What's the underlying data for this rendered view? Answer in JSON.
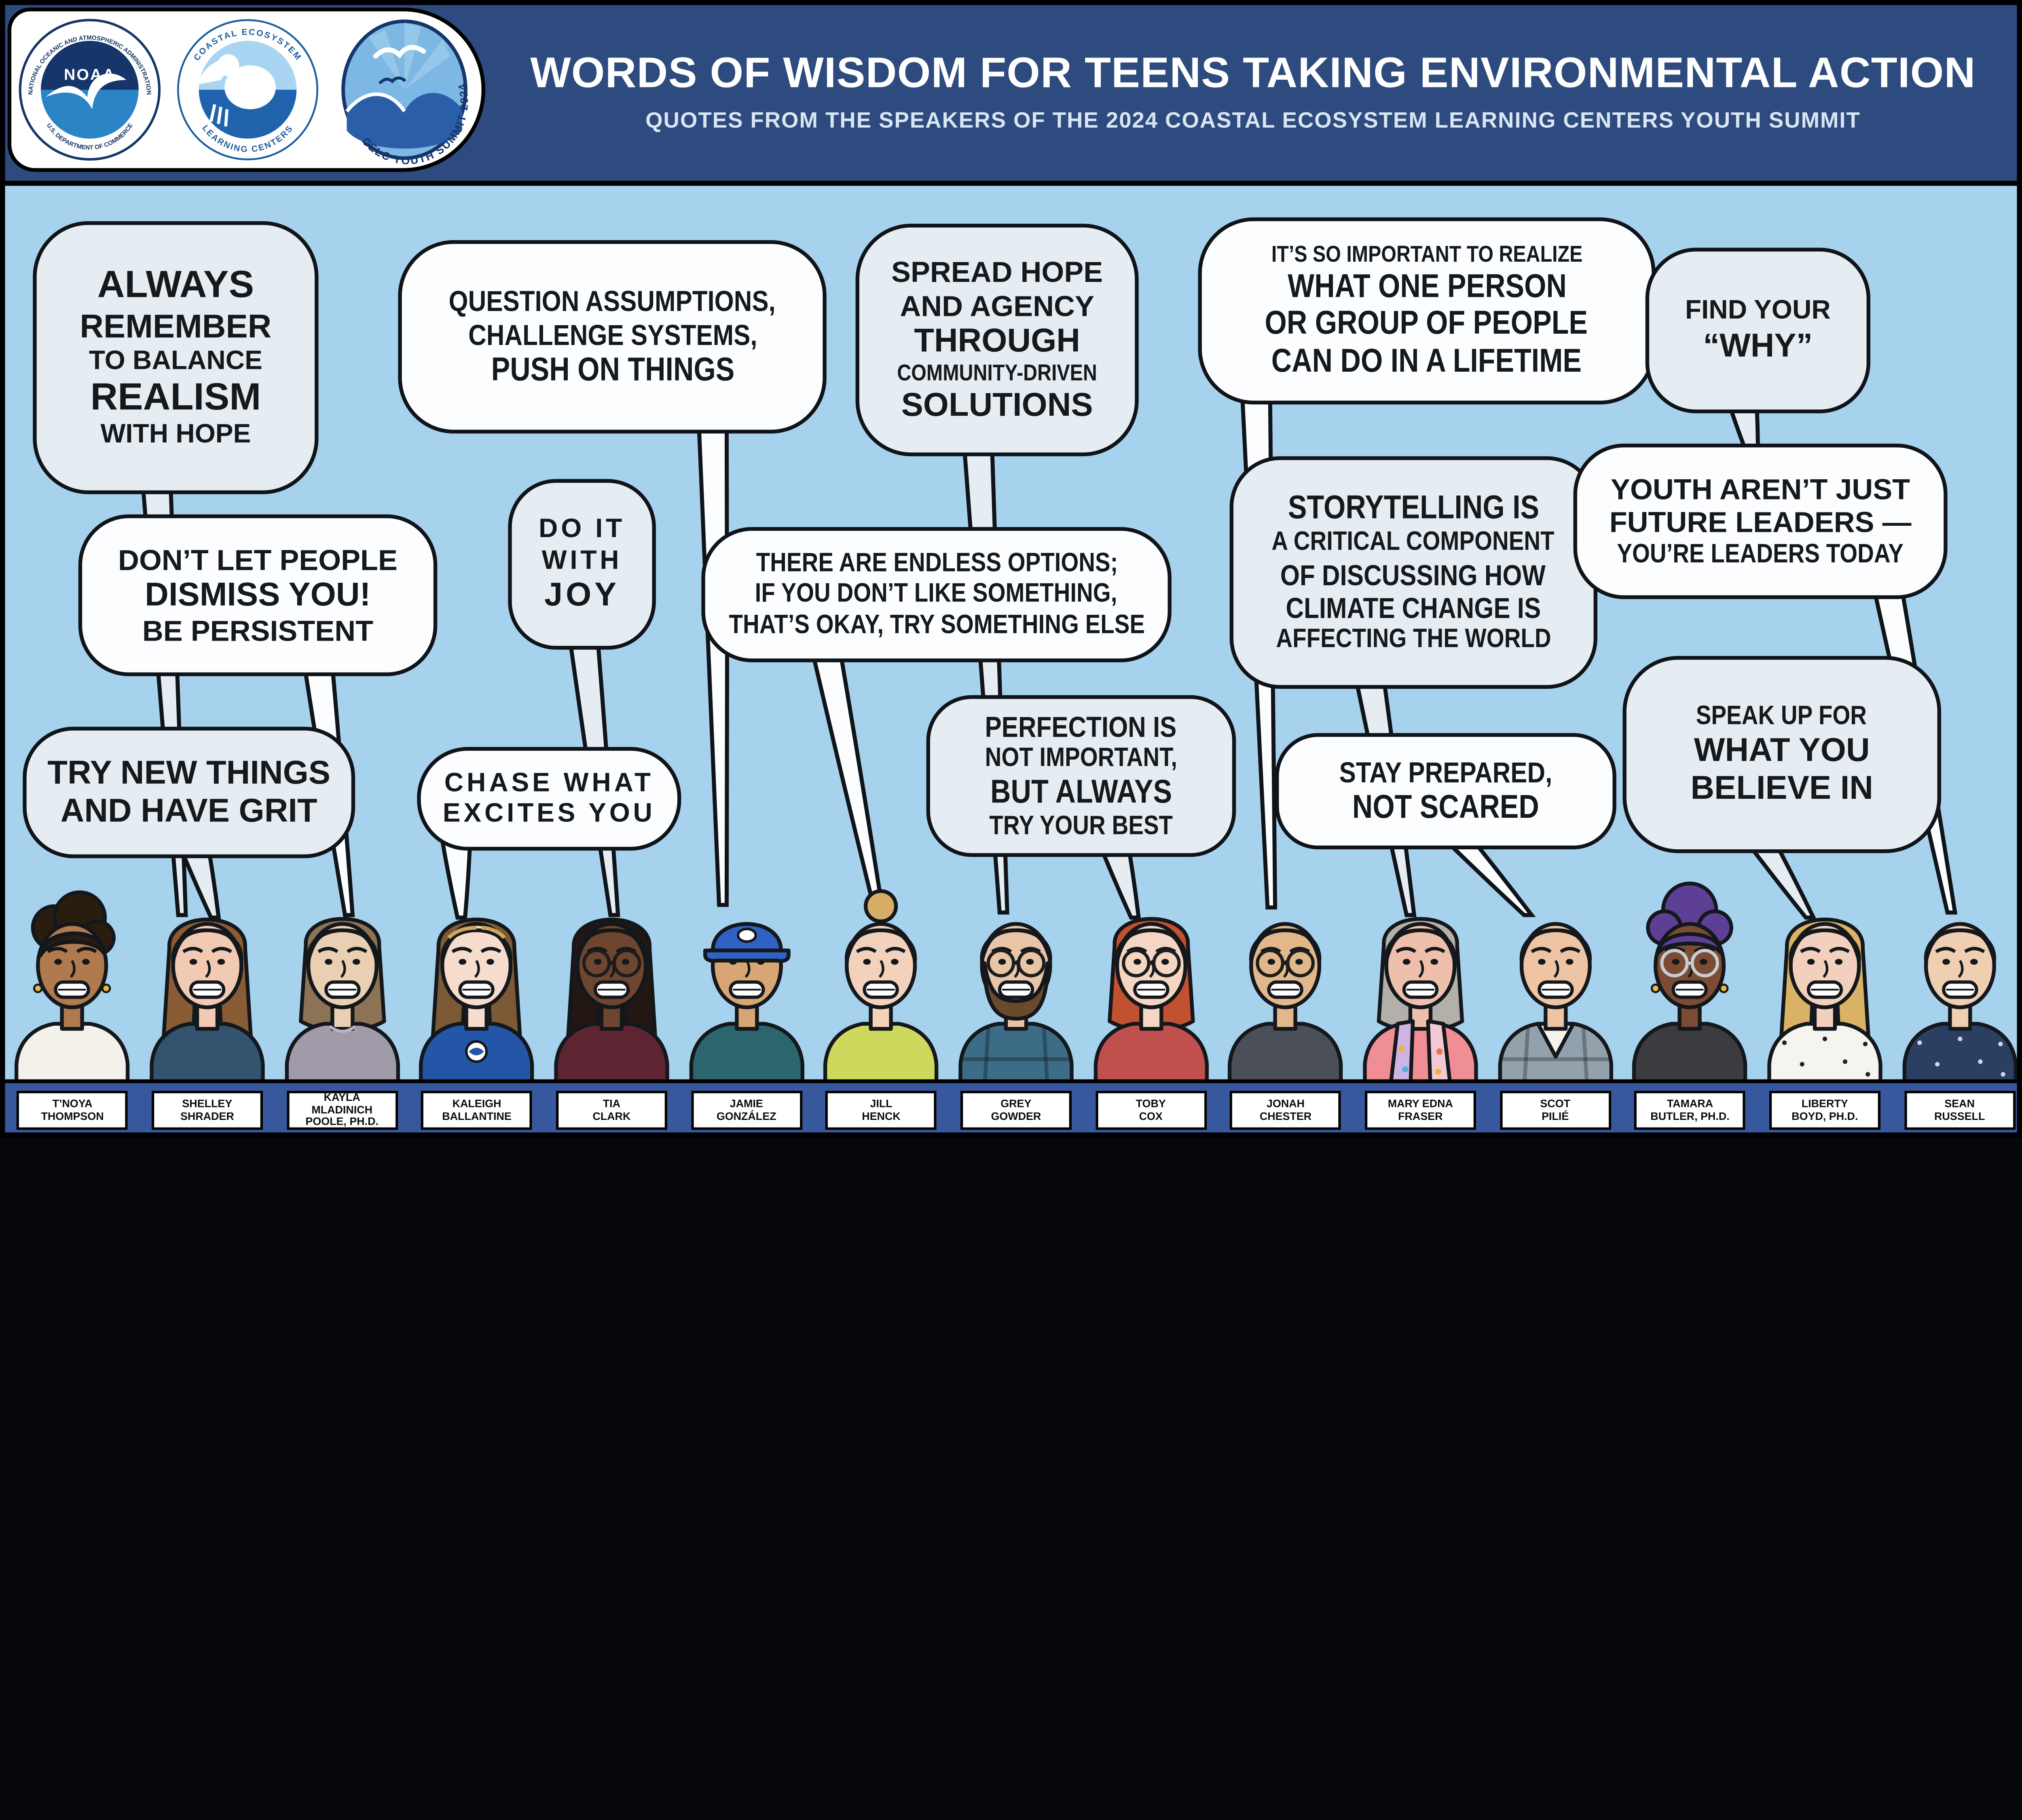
{
  "header": {
    "title": "WORDS OF WISDOM FOR TEENS TAKING ENVIRONMENTAL ACTION",
    "subtitle": "QUOTES FROM THE SPEAKERS OF THE 2024 COASTAL ECOSYSTEM LEARNING CENTERS YOUTH SUMMIT",
    "bg": "#2d4b7e",
    "logos": [
      {
        "name": "noaa-logo",
        "center": "NOAA",
        "ring_top": "NATIONAL OCEANIC AND ATMOSPHERIC ADMINISTRATION",
        "ring_bottom": "U.S. DEPARTMENT OF COMMERCE"
      },
      {
        "name": "celc-logo",
        "ring_top": "COASTAL ECOSYSTEM",
        "ring_bottom": "LEARNING CENTERS"
      },
      {
        "name": "celc-youth-summit-logo",
        "arc": "CELC YOUTH SUMMIT 2024"
      }
    ]
  },
  "colors": {
    "background": "#a6d2ee",
    "header_bg": "#2d4b7e",
    "bubble_pale": "#e5edf2",
    "bubble_white": "#fbfdff",
    "outline": "#101418",
    "name_bar": "#38589e",
    "name_box_bg": "#ffffff",
    "name_text": "#0c0c0c",
    "title_text": "#ffffff",
    "subtitle_text": "#d9e5f2"
  },
  "bubbles": [
    {
      "speaker": "T’Noya Thompson",
      "tone": "pale",
      "lines": [
        {
          "t": "ALWAYS",
          "s": "xl"
        },
        {
          "t": "REMEMBER",
          "s": "l"
        },
        {
          "t": "TO BALANCE",
          "s": "m"
        },
        {
          "t": "REALISM",
          "s": "xl"
        },
        {
          "t": "WITH HOPE",
          "s": "m"
        }
      ]
    },
    {
      "speaker": "Kayla Mladinich Poole, Ph.D.",
      "tone": "white",
      "lines": [
        {
          "t": "DON’T LET PEOPLE",
          "s": "ml"
        },
        {
          "t": "DISMISS YOU!",
          "s": "l"
        },
        {
          "t": "BE PERSISTENT",
          "s": "ml"
        }
      ]
    },
    {
      "speaker": "Shelley Shrader",
      "tone": "pale",
      "lines": [
        {
          "t": "TRY NEW THINGS",
          "s": "l"
        },
        {
          "t": "AND HAVE GRIT",
          "s": "l"
        }
      ]
    },
    {
      "speaker": "Jamie González",
      "tone": "white",
      "lines": [
        {
          "t": "QUESTION ASSUMPTIONS,",
          "s": "ml",
          "n": true
        },
        {
          "t": "CHALLENGE SYSTEMS,",
          "s": "ml",
          "n": true
        },
        {
          "t": "PUSH ON THINGS",
          "s": "l",
          "n": true
        }
      ]
    },
    {
      "speaker": "Tia Clark",
      "tone": "pale",
      "lines": [
        {
          "t": "DO IT",
          "s": "m",
          "w": true
        },
        {
          "t": "WITH",
          "s": "m",
          "w": true
        },
        {
          "t": "JOY",
          "s": "l",
          "w": true
        }
      ]
    },
    {
      "speaker": "Kaleigh Ballantine",
      "tone": "white",
      "lines": [
        {
          "t": "CHASE WHAT",
          "s": "m",
          "w": true
        },
        {
          "t": "EXCITES YOU",
          "s": "m",
          "w": true
        }
      ]
    },
    {
      "speaker": "Jill Henck",
      "tone": "white",
      "lines": [
        {
          "t": "THERE ARE ENDLESS OPTIONS;",
          "s": "m",
          "n": true
        },
        {
          "t": "IF YOU DON’T LIKE SOMETHING,",
          "s": "m",
          "n": true
        },
        {
          "t": "THAT’S OKAY, TRY SOMETHING ELSE",
          "s": "m",
          "n": true
        }
      ]
    },
    {
      "speaker": "Grey Gowder",
      "tone": "pale",
      "lines": [
        {
          "t": "SPREAD HOPE",
          "s": "ml"
        },
        {
          "t": "AND AGENCY",
          "s": "ml"
        },
        {
          "t": "THROUGH",
          "s": "l"
        },
        {
          "t": "COMMUNITY-DRIVEN",
          "s": "s",
          "n": true
        },
        {
          "t": "SOLUTIONS",
          "s": "l"
        }
      ]
    },
    {
      "speaker": "Toby Cox",
      "tone": "pale",
      "lines": [
        {
          "t": "PERFECTION IS",
          "s": "ml",
          "n": true
        },
        {
          "t": "NOT IMPORTANT,",
          "s": "m",
          "n": true
        },
        {
          "t": "BUT ALWAYS",
          "s": "l",
          "n": true
        },
        {
          "t": "TRY YOUR BEST",
          "s": "m",
          "n": true
        }
      ]
    },
    {
      "speaker": "Jonah Chester",
      "tone": "white",
      "lines": [
        {
          "t": "IT’S SO IMPORTANT TO REALIZE",
          "s": "s",
          "n": true
        },
        {
          "t": "WHAT ONE PERSON",
          "s": "l",
          "n": true
        },
        {
          "t": "OR GROUP OF PEOPLE",
          "s": "l",
          "n": true
        },
        {
          "t": "CAN DO IN A LIFETIME",
          "s": "l",
          "n": true
        }
      ]
    },
    {
      "speaker": "Mary Edna Fraser",
      "tone": "pale",
      "lines": [
        {
          "t": "STORYTELLING IS",
          "s": "l",
          "n": true
        },
        {
          "t": "A CRITICAL COMPONENT",
          "s": "m",
          "n": true
        },
        {
          "t": "OF DISCUSSING HOW",
          "s": "ml",
          "n": true
        },
        {
          "t": "CLIMATE CHANGE IS",
          "s": "ml",
          "n": true
        },
        {
          "t": "AFFECTING THE WORLD",
          "s": "m",
          "n": true
        }
      ]
    },
    {
      "speaker": "Scot Pilié",
      "tone": "white",
      "lines": [
        {
          "t": "STAY PREPARED,",
          "s": "ml",
          "n": true
        },
        {
          "t": "NOT SCARED",
          "s": "l",
          "n": true
        }
      ]
    },
    {
      "speaker": "Tamara Butler, Ph.D.",
      "tone": "pale",
      "lines": [
        {
          "t": "FIND YOUR",
          "s": "m"
        },
        {
          "t": "“WHY”",
          "s": "l"
        }
      ]
    },
    {
      "speaker": "Sean Russell",
      "tone": "white",
      "lines": [
        {
          "t": "YOUTH AREN’T JUST",
          "s": "ml"
        },
        {
          "t": "FUTURE LEADERS —",
          "s": "ml"
        },
        {
          "t": "YOU’RE LEADERS TODAY",
          "s": "m",
          "n": true
        }
      ]
    },
    {
      "speaker": "Liberty Boyd, Ph.D.",
      "tone": "pale",
      "lines": [
        {
          "t": "SPEAK UP FOR",
          "s": "m",
          "n": true
        },
        {
          "t": "WHAT YOU",
          "s": "l"
        },
        {
          "t": "BELIEVE IN",
          "s": "l"
        }
      ]
    }
  ],
  "people": [
    {
      "label_lines": [
        "T’NOYA",
        "THOMPSON"
      ],
      "avatar": {
        "style": "curly",
        "skin": "#b07a4e",
        "hair": "#2b1c10",
        "shirt": "#f3f1ea",
        "earrings": true
      }
    },
    {
      "label_lines": [
        "SHELLEY",
        "SHRADER"
      ],
      "avatar": {
        "style": "long",
        "skin": "#f2c9b3",
        "hair": "#8a5c35",
        "shirt": "#33536e"
      }
    },
    {
      "label_lines": [
        "KAYLA",
        "MLADINICH",
        "POOLE, PH.D."
      ],
      "avatar": {
        "style": "bob",
        "skin": "#ead0b2",
        "hair": "#8d7355",
        "shirt": "#a09aa9",
        "necklace": true
      }
    },
    {
      "label_lines": [
        "KALEIGH",
        "BALLANTINE"
      ],
      "avatar": {
        "style": "long",
        "skin": "#f6dccd",
        "hair": "#7c5a35",
        "hl": "#cfa75a",
        "shirt": "#2456a8",
        "chest_logo": true
      }
    },
    {
      "label_lines": [
        "TIA",
        "CLARK"
      ],
      "avatar": {
        "style": "long",
        "skin": "#6e452e",
        "hair": "#221712",
        "shirt": "#5f2431",
        "glasses": "#1d1d1d"
      }
    },
    {
      "label_lines": [
        "JAMIE",
        "GONZÁLEZ"
      ],
      "avatar": {
        "style": "cap",
        "cap": "#2f62c4",
        "skin": "#d8a674",
        "hair": "#3a2a1a",
        "shirt": "#2c656e"
      }
    },
    {
      "label_lines": [
        "JILL",
        "HENCK"
      ],
      "avatar": {
        "style": "bun",
        "skin": "#f2d2bb",
        "hair": "#d7ad65",
        "shirt": "#ccd95c"
      }
    },
    {
      "label_lines": [
        "GREY",
        "GOWDER"
      ],
      "avatar": {
        "style": "short",
        "skin": "#e9c5a7",
        "hair": "#6b4a2c",
        "shirt": "#3d6d86",
        "beard": true,
        "glasses": "#1d1d1d",
        "plaid": true
      }
    },
    {
      "label_lines": [
        "TOBY",
        "COX"
      ],
      "avatar": {
        "style": "bob",
        "skin": "#f4d6c3",
        "hair": "#c2512f",
        "shirt": "#c0504d",
        "glasses": "#1d1d1d"
      }
    },
    {
      "label_lines": [
        "JONAH",
        "CHESTER"
      ],
      "avatar": {
        "style": "short",
        "skin": "#e2b88b",
        "hair": "#9a7240",
        "shirt": "#4b5058",
        "glasses": "#1d1d1d"
      }
    },
    {
      "label_lines": [
        "MARY EDNA",
        "FRASER"
      ],
      "avatar": {
        "style": "bob",
        "skin": "#eec0ab",
        "hair": "#b3afa9",
        "shirt": "#f08e96",
        "scarf": true
      }
    },
    {
      "label_lines": [
        "SCOT",
        "PILIÉ"
      ],
      "avatar": {
        "style": "short",
        "skin": "#eec4a3",
        "hair": "#8a5a33",
        "shirt": "#93a1ad",
        "plaid": true,
        "inner": true
      }
    },
    {
      "label_lines": [
        "TAMARA",
        "BUTLER, PH.D."
      ],
      "avatar": {
        "style": "updo",
        "skin": "#7c4b33",
        "hair": "#5d3f96",
        "shirt": "#3c3c40",
        "glasses": "#c6ccd2",
        "earrings": true
      }
    },
    {
      "label_lines": [
        "LIBERTY",
        "BOYD, PH.D."
      ],
      "avatar": {
        "style": "long",
        "skin": "#f2d0bd",
        "hair": "#d9b266",
        "shirt": "#f6f4ef",
        "dots": "#222222"
      }
    },
    {
      "label_lines": [
        "SEAN",
        "RUSSELL"
      ],
      "avatar": {
        "style": "short",
        "skin": "#efceb2",
        "hair": "#c9a24f",
        "shirt": "#2b3f63",
        "dots": "#cfd8e8"
      }
    }
  ]
}
